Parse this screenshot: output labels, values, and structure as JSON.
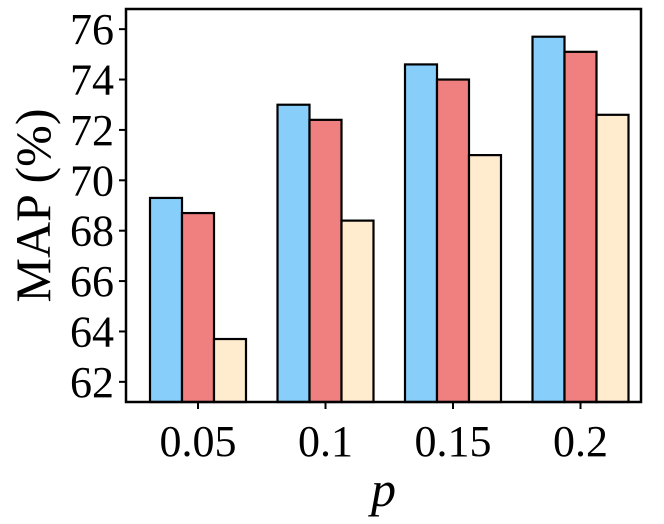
{
  "chart_data": {
    "type": "bar",
    "title": "",
    "xlabel": "p",
    "ylabel": "MAP (%)",
    "categories": [
      "0.05",
      "0.1",
      "0.15",
      "0.2"
    ],
    "ylim": [
      61.2,
      76.8
    ],
    "yticks": [
      62,
      64,
      66,
      68,
      70,
      72,
      74,
      76
    ],
    "grid": false,
    "legend": "none",
    "series": [
      {
        "color": "#87CEFA",
        "values": [
          69.3,
          73.0,
          74.6,
          75.7
        ]
      },
      {
        "color": "#F08080",
        "values": [
          68.7,
          72.4,
          74.0,
          75.1
        ]
      },
      {
        "color": "#FFEBCD",
        "values": [
          63.7,
          68.4,
          71.0,
          72.6
        ]
      }
    ]
  }
}
